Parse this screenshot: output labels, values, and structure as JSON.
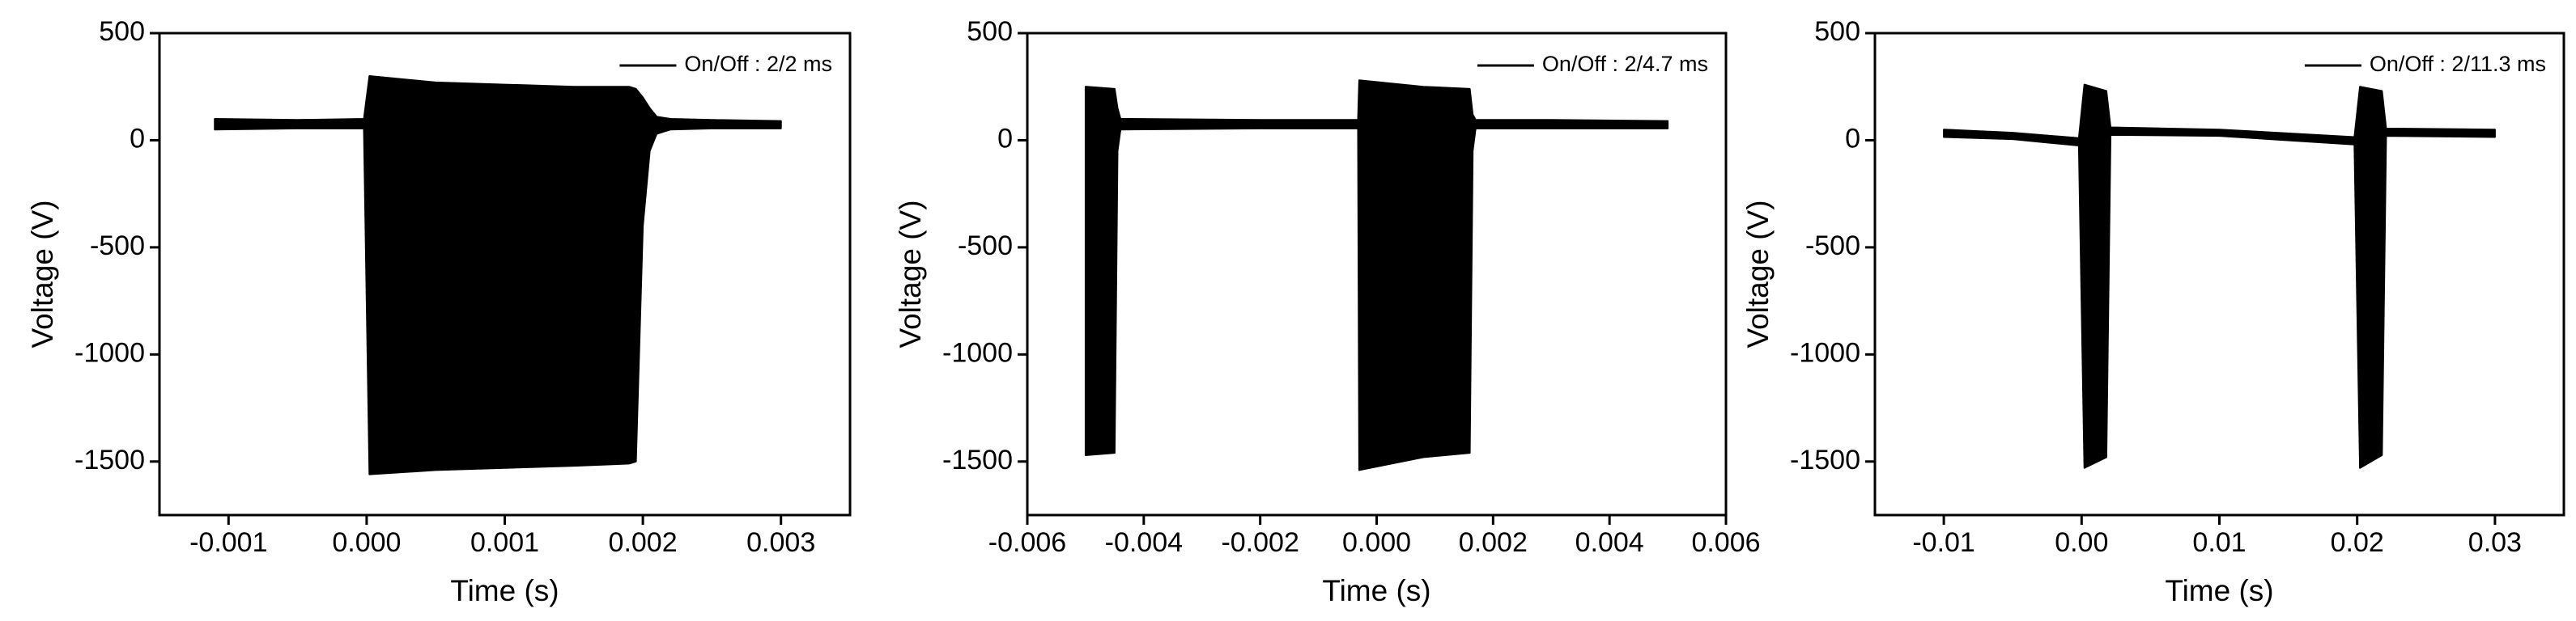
{
  "chart_data": [
    {
      "type": "envelope",
      "xlabel": "Time (s)",
      "ylabel": "Voltage (V)",
      "legend": "upper right",
      "xlim": [
        -0.0015,
        0.0035
      ],
      "xticks": [
        -0.001,
        {
          "value": 0,
          "label": "0.000"
        },
        0.001,
        0.002,
        0.003
      ],
      "ylim": [
        -1750,
        500
      ],
      "yticks": [
        500,
        0,
        -500,
        -1000,
        -1500
      ],
      "x": [
        -0.0011,
        -0.0005,
        -2e-05,
        2e-05,
        0.0005,
        0.001,
        0.0015,
        0.0019,
        0.00195,
        0.002,
        0.00205,
        0.0021,
        0.0022,
        0.0025,
        0.003
      ],
      "series": [
        {
          "name": "On/Off : 2/2 ms",
          "color": "#000000",
          "high": [
            100,
            95,
            100,
            300,
            270,
            260,
            250,
            250,
            240,
            200,
            150,
            110,
            100,
            95,
            90
          ],
          "low": [
            50,
            55,
            55,
            -1560,
            -1540,
            -1530,
            -1520,
            -1510,
            -1500,
            -400,
            -50,
            30,
            50,
            55,
            55
          ]
        }
      ]
    },
    {
      "type": "envelope",
      "xlabel": "Time (s)",
      "ylabel": "Voltage (V)",
      "legend": "upper right",
      "xlim": [
        -0.006,
        0.006
      ],
      "xticks": [
        -0.006,
        -0.004,
        -0.002,
        {
          "value": 0,
          "label": "0.000"
        },
        0.002,
        0.004,
        0.006
      ],
      "ylim": [
        -1750,
        500
      ],
      "yticks": [
        500,
        0,
        -500,
        -1000,
        -1500
      ],
      "x": [
        -0.005,
        -0.00498,
        -0.0045,
        -0.00445,
        -0.0044,
        -0.002,
        -0.00032,
        -0.0003,
        0.0008,
        0.0016,
        0.00165,
        0.0017,
        0.003,
        0.005
      ],
      "series": [
        {
          "name": "On/Off : 2/4.7 ms",
          "color": "#000000",
          "high": [
            250,
            250,
            240,
            150,
            100,
            95,
            95,
            280,
            250,
            240,
            120,
            95,
            95,
            90
          ],
          "low": [
            -1470,
            -1470,
            -1460,
            -50,
            50,
            55,
            55,
            -1540,
            -1480,
            -1460,
            -50,
            55,
            55,
            55
          ]
        }
      ]
    },
    {
      "type": "envelope",
      "xlabel": "Time (s)",
      "ylabel": "Voltage (V)",
      "legend": "upper right",
      "xlim": [
        -0.015,
        0.035
      ],
      "xticks": [
        -0.01,
        {
          "value": 0,
          "label": "0.00"
        },
        {
          "value": 0.01,
          "label": "0.01"
        },
        {
          "value": 0.02,
          "label": "0.02"
        },
        {
          "value": 0.03,
          "label": "0.03"
        }
      ],
      "ylim": [
        -1750,
        500
      ],
      "yticks": [
        500,
        0,
        -500,
        -1000,
        -1500
      ],
      "x": [
        -0.01,
        -0.005,
        -0.0002,
        0.0002,
        0.0018,
        0.0021,
        0.01,
        0.0198,
        0.0202,
        0.0218,
        0.0221,
        0.03
      ],
      "series": [
        {
          "name": "On/Off : 2/11.3 ms",
          "color": "#000000",
          "high": [
            50,
            35,
            10,
            260,
            230,
            60,
            50,
            15,
            250,
            230,
            55,
            50
          ],
          "low": [
            15,
            5,
            -25,
            -1530,
            -1480,
            25,
            20,
            -20,
            -1530,
            -1470,
            20,
            15
          ]
        }
      ]
    }
  ]
}
